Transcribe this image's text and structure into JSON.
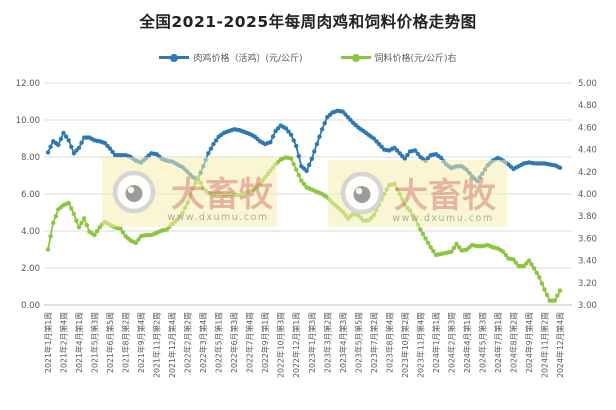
{
  "title": "全国2021-2025年每周肉鸡和饲料价格走势图",
  "legend": [
    {
      "label": "肉鸡价格（活鸡）(元/公斤)",
      "color": "#2E79B2"
    },
    {
      "label": "饲料价格(元/公斤)右",
      "color": "#8CC540"
    }
  ],
  "watermark": {
    "brand": "大畜牧",
    "url": "www.dxumu.com"
  },
  "chart_data": {
    "type": "line",
    "x_unit": "week",
    "n_points": 199,
    "tick_every_weeks": 6,
    "x_tick_labels": [
      "2021年1月第1周",
      "2021年2月第4周",
      "2021年4月第1周",
      "2021年5月第3周",
      "2021年6月第5周",
      "2021年8月第2周",
      "2021年9月第4周",
      "2021年11月第2周",
      "2021年12月第4周",
      "2022年2月第2周",
      "2022年3月第4周",
      "2022年5月第1周",
      "2022年6月第3周",
      "2022年7月第4周",
      "2022年9月第1周",
      "2022年10月第3周",
      "2022年12月第1周",
      "2023年1月第3周",
      "2023年3月第2周",
      "2023年4月第3周",
      "2023年5月第5周",
      "2023年7月第2周",
      "2023年8月第4周",
      "2023年10月第2周",
      "2023年11月第4周",
      "2024年1月第1周",
      "2024年2月第3周",
      "2024年4月第1周",
      "2024年5月第3周",
      "2024年7月第1周",
      "2024年8月第2周",
      "2024年9月第4周",
      "2024年11月第2周",
      "2024年12月第4周"
    ],
    "left_axis": {
      "min": 0,
      "max": 12,
      "ticks": [
        "12.00",
        "10.00",
        "8.00",
        "6.00",
        "4.00",
        "2.00",
        "0.00"
      ]
    },
    "right_axis": {
      "min": 3,
      "max": 5,
      "ticks": [
        "5.00",
        "4.80",
        "4.60",
        "4.40",
        "4.20",
        "4.00",
        "3.80",
        "3.60",
        "3.40",
        "3.20",
        "3.00"
      ]
    },
    "grid": true,
    "legend_position": "top",
    "series": [
      {
        "name": "肉鸡价格（活鸡）(元/公斤)",
        "axis": "left",
        "color": "#2E79B2",
        "week_step": 2,
        "values": [
          8.25,
          8.85,
          8.65,
          9.3,
          8.9,
          8.2,
          8.5,
          9.05,
          9.05,
          8.9,
          8.85,
          8.75,
          8.45,
          8.1,
          8.1,
          8.1,
          8.0,
          7.8,
          7.7,
          7.95,
          8.2,
          8.15,
          7.9,
          7.8,
          7.75,
          7.6,
          7.45,
          7.2,
          6.9,
          6.8,
          7.5,
          8.2,
          8.7,
          9.1,
          9.3,
          9.4,
          9.5,
          9.45,
          9.35,
          9.25,
          9.1,
          8.85,
          8.7,
          8.8,
          9.4,
          9.7,
          9.55,
          9.2,
          8.6,
          7.5,
          7.25,
          7.9,
          8.7,
          9.5,
          10.15,
          10.4,
          10.5,
          10.45,
          10.15,
          9.85,
          9.6,
          9.4,
          9.2,
          9.0,
          8.7,
          8.4,
          8.35,
          8.5,
          8.2,
          7.9,
          8.3,
          8.35,
          8.0,
          7.8,
          8.1,
          8.15,
          7.95,
          7.6,
          7.4,
          7.5,
          7.5,
          7.3,
          6.95,
          6.7,
          7.1,
          7.55,
          7.8,
          7.95,
          7.8,
          7.6,
          7.35,
          7.5,
          7.65,
          7.7,
          7.66,
          7.65,
          7.65,
          7.6,
          7.55,
          7.42
        ]
      },
      {
        "name": "饲料价格(元/公斤)右",
        "axis": "right",
        "color": "#8CC540",
        "week_step": 2,
        "values": [
          3.5,
          3.74,
          3.86,
          3.9,
          3.92,
          3.82,
          3.7,
          3.78,
          3.66,
          3.63,
          3.7,
          3.75,
          3.72,
          3.7,
          3.69,
          3.62,
          3.58,
          3.56,
          3.62,
          3.63,
          3.63,
          3.65,
          3.67,
          3.68,
          3.73,
          3.77,
          3.83,
          3.92,
          4.05,
          4.15,
          4.05,
          4.01,
          4.0,
          4.01,
          3.99,
          4.0,
          3.99,
          3.99,
          4.01,
          4.02,
          4.05,
          4.09,
          4.15,
          4.21,
          4.27,
          4.31,
          4.33,
          4.32,
          4.22,
          4.12,
          4.06,
          4.04,
          4.02,
          4.0,
          3.97,
          3.92,
          3.88,
          3.84,
          3.78,
          3.82,
          3.81,
          3.76,
          3.76,
          3.81,
          3.9,
          4.0,
          4.08,
          4.09,
          4.0,
          3.9,
          3.85,
          3.77,
          3.68,
          3.6,
          3.52,
          3.45,
          3.46,
          3.47,
          3.48,
          3.55,
          3.49,
          3.5,
          3.54,
          3.53,
          3.53,
          3.54,
          3.52,
          3.51,
          3.48,
          3.42,
          3.41,
          3.35,
          3.35,
          3.4,
          3.33,
          3.25,
          3.14,
          3.04,
          3.04,
          3.13
        ]
      }
    ]
  }
}
